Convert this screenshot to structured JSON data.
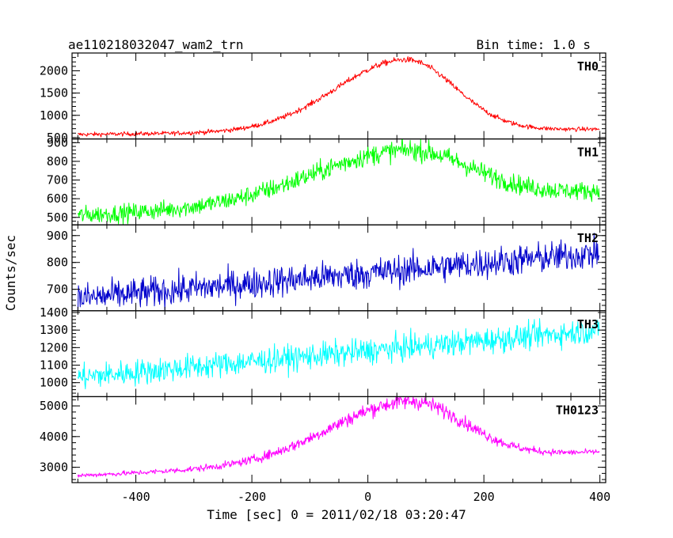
{
  "chart_data": {
    "type": "line",
    "title_left": "ae110218032047_wam2_trn",
    "title_right": "Bin time: 1.0 s",
    "xlabel": "Time [sec] 0 = 2011/02/18 03:20:47",
    "ylabel": "Counts/sec",
    "xlim": [
      -510,
      410
    ],
    "xticks": [
      -400,
      -200,
      0,
      200,
      400
    ],
    "grid": false,
    "panels": [
      {
        "name": "TH0",
        "color": "#ff0000",
        "ylim": [
          470,
          2400
        ],
        "yticks": [
          500,
          1000,
          1500,
          2000
        ],
        "shape": {
          "start": 570,
          "end": 690,
          "peak": 2250,
          "peak_x": 65,
          "sigma_left": 120,
          "sigma_right": 85,
          "baseline_slope": 0.1,
          "noise": 45
        }
      },
      {
        "name": "TH1",
        "color": "#00ff00",
        "ylim": [
          460,
          920
        ],
        "yticks": [
          500,
          600,
          700,
          800,
          900
        ],
        "shape": {
          "start": 510,
          "end": 640,
          "peak": 860,
          "peak_x": 65,
          "sigma_left": 160,
          "sigma_right": 110,
          "baseline_slope": 0.1,
          "noise": 45
        }
      },
      {
        "name": "TH2",
        "color": "#0000cc",
        "ylim": [
          620,
          940
        ],
        "yticks": [
          700,
          800,
          900
        ],
        "shape": {
          "start": 665,
          "end": 835,
          "peak": 0,
          "peak_x": 0,
          "sigma_left": 100,
          "sigma_right": 100,
          "baseline_slope": 0,
          "noise": 55
        }
      },
      {
        "name": "TH3",
        "color": "#00ffff",
        "ylim": [
          920,
          1410
        ],
        "yticks": [
          1000,
          1100,
          1200,
          1300,
          1400
        ],
        "shape": {
          "start": 1030,
          "end": 1300,
          "peak": 0,
          "peak_x": 0,
          "sigma_left": 100,
          "sigma_right": 100,
          "baseline_slope": 0,
          "noise": 70
        }
      },
      {
        "name": "TH0123",
        "color": "#ff00ff",
        "ylim": [
          2500,
          5300
        ],
        "yticks": [
          3000,
          4000,
          5000
        ],
        "shape": {
          "start": 2730,
          "end": 3500,
          "peak": 5150,
          "peak_x": 70,
          "sigma_left": 135,
          "sigma_right": 95,
          "baseline_slope": 0.55,
          "noise": 70
        }
      }
    ]
  }
}
